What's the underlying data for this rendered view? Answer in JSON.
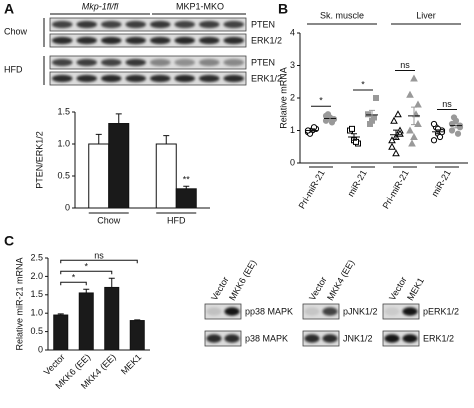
{
  "panel_labels": [
    "A",
    "B",
    "C"
  ],
  "blot_a": {
    "genotypes": [
      "Mkp-1fl/fl",
      "MKP1-MKO"
    ],
    "conditions": [
      "Chow",
      "HFD"
    ],
    "proteins": [
      "PTEN",
      "ERK1/2",
      "PTEN",
      "ERK1/2"
    ]
  },
  "blots_c": [
    {
      "lanes": [
        "Vector",
        "MKK6 (EE)"
      ],
      "proteins": [
        "pp38 MAPK",
        "p38 MAPK"
      ]
    },
    {
      "lanes": [
        "Vector",
        "MKK4 (EE)"
      ],
      "proteins": [
        "pJNK1/2",
        "JNK1/2"
      ]
    },
    {
      "lanes": [
        "Vector",
        "MEK1"
      ],
      "proteins": [
        "pERK1/2",
        "ERK1/2"
      ]
    }
  ],
  "chart_data": [
    {
      "type": "bar",
      "y_label": "PTEN/ERK1/2",
      "categories": [
        "Chow",
        "HFD"
      ],
      "series": [
        {
          "color": "#ffffff",
          "values": [
            1.0,
            1.0
          ],
          "errors": [
            0.15,
            0.13
          ]
        },
        {
          "color": "#1a1a1a",
          "values": [
            1.32,
            0.3
          ],
          "errors": [
            0.15,
            0.04
          ]
        }
      ],
      "annotations": [
        "**"
      ],
      "ylim": [
        0,
        1.5
      ],
      "yticks": [
        0,
        0.5,
        {
          "value": 1,
          "label": "1.0"
        },
        1.5
      ]
    },
    {
      "type": "dot",
      "y_label": "Relative mRNA",
      "groups": [
        "Sk. muscle",
        "Liver"
      ],
      "categories": [
        "Pri-miR-21",
        "miR-21",
        "Pri-miR-21",
        "miR-21"
      ],
      "series": [
        {
          "color": "#000000",
          "values": [
            1.0,
            0.8,
            0.87,
            0.96
          ],
          "errors": [
            0.05,
            0.1,
            0.14,
            0.06
          ],
          "points": [
            [
              0.95,
              1.0,
              1.05,
              0.9,
              1.1,
              1.0
            ],
            [
              1.0,
              0.7,
              0.6,
              1.05,
              0.65
            ],
            [
              0.5,
              0.8,
              1.0,
              1.3,
              1.5,
              0.7,
              0.9,
              0.3
            ],
            [
              0.7,
              0.9,
              1.0,
              1.1,
              0.8,
              1.2,
              0.95,
              1.05
            ]
          ]
        },
        {
          "color": "#999999",
          "values": [
            1.37,
            1.48,
            1.45,
            1.15
          ],
          "errors": [
            0.06,
            0.14,
            0.27,
            0.07
          ],
          "points": [
            [
              1.3,
              1.4,
              1.35,
              1.5,
              1.25,
              1.45
            ],
            [
              1.5,
              1.3,
              2.0,
              1.2,
              1.4
            ],
            [
              1.0,
              2.6,
              1.8,
              0.6,
              1.5,
              2.1,
              1.2,
              0.8
            ],
            [
              1.0,
              1.3,
              1.1,
              1.4,
              0.9,
              1.2,
              1.15
            ]
          ]
        }
      ],
      "annotations": [
        "*",
        "*",
        "ns",
        "ns"
      ],
      "ylim": [
        0,
        4
      ],
      "yticks": [
        0,
        1,
        2,
        3,
        4
      ]
    },
    {
      "type": "bar",
      "y_label": "Relative miR-21 mRNA",
      "categories": [
        "Vector",
        "MKK6 (EE)",
        "MKK4 (EE)",
        "MEK1"
      ],
      "values": [
        0.95,
        1.55,
        1.7,
        0.8
      ],
      "errors": [
        0.03,
        0.1,
        0.25,
        0.02
      ],
      "color": "#1a1a1a",
      "annotations": [
        "*",
        "*",
        "ns"
      ],
      "ylim": [
        0,
        2.5
      ],
      "yticks": [
        0,
        0.5,
        {
          "value": 1,
          "label": "1.0"
        },
        1.5,
        {
          "value": 2,
          "label": "2.0"
        },
        2.5
      ]
    }
  ]
}
